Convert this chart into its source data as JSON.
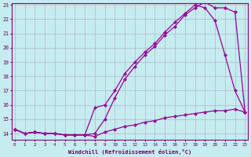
{
  "xlabel": "Windchill (Refroidissement éolien,°C)",
  "xlim_min": 0,
  "xlim_max": 23,
  "ylim_min": 14,
  "ylim_max": 23,
  "yticks": [
    14,
    15,
    16,
    17,
    18,
    19,
    20,
    21,
    22,
    23
  ],
  "xticks": [
    0,
    1,
    2,
    3,
    4,
    5,
    6,
    7,
    8,
    9,
    10,
    11,
    12,
    13,
    14,
    15,
    16,
    17,
    18,
    19,
    20,
    21,
    22,
    23
  ],
  "background_color": "#c5ecee",
  "grid_color": "#b0b8cc",
  "line_color": "#990099",
  "line1_x": [
    0,
    1,
    2,
    3,
    4,
    5,
    6,
    7,
    8,
    9,
    10,
    11,
    12,
    13,
    14,
    15,
    16,
    17,
    18,
    19,
    20,
    21,
    22,
    23
  ],
  "line1_y": [
    14.3,
    14.0,
    14.1,
    14.0,
    14.0,
    13.9,
    13.9,
    13.9,
    13.8,
    14.1,
    14.3,
    14.5,
    14.6,
    14.8,
    14.9,
    15.1,
    15.2,
    15.3,
    15.4,
    15.5,
    15.6,
    15.6,
    15.7,
    15.5
  ],
  "line2_x": [
    0,
    1,
    2,
    3,
    4,
    5,
    6,
    7,
    8,
    9,
    10,
    11,
    12,
    13,
    14,
    15,
    16,
    17,
    18,
    19,
    20,
    21,
    22,
    23
  ],
  "line2_y": [
    14.3,
    14.0,
    14.1,
    14.0,
    14.0,
    13.9,
    13.9,
    13.9,
    15.8,
    16.0,
    17.0,
    18.2,
    19.0,
    19.7,
    20.3,
    21.1,
    21.8,
    22.4,
    23.0,
    22.8,
    21.9,
    19.5,
    17.0,
    15.5
  ],
  "line3_x": [
    0,
    1,
    2,
    3,
    4,
    5,
    6,
    7,
    8,
    9,
    10,
    11,
    12,
    13,
    14,
    15,
    16,
    17,
    18,
    19,
    20,
    21,
    22,
    23
  ],
  "line3_y": [
    14.3,
    14.0,
    14.1,
    14.0,
    14.0,
    13.9,
    13.9,
    13.9,
    14.0,
    15.0,
    16.5,
    17.8,
    18.7,
    19.5,
    20.1,
    20.9,
    21.5,
    22.3,
    22.8,
    23.2,
    22.8,
    22.8,
    22.5,
    15.5
  ]
}
